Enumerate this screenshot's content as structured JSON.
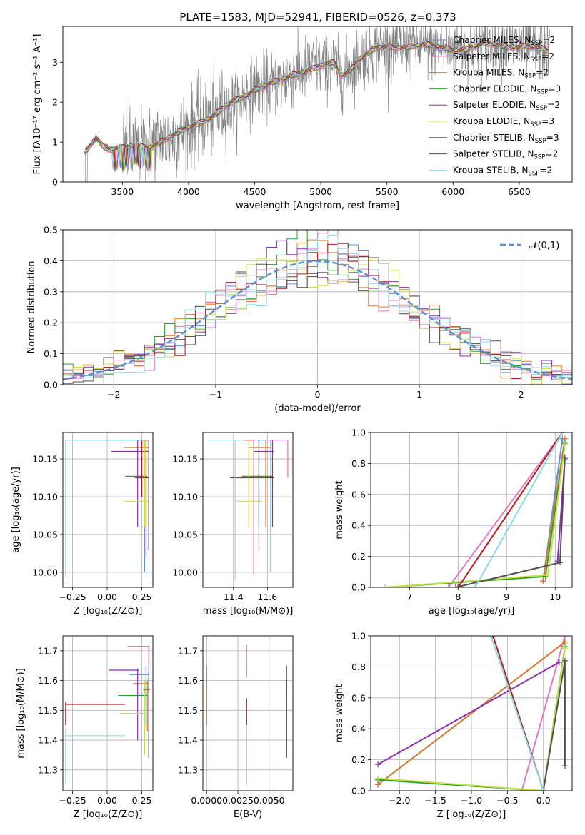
{
  "figure": {
    "title": "PLATE=1583, MJD=52941, FIBERID=0526, z=0.373"
  },
  "series_styles": [
    {
      "name": "Chabrier MILES, N_SSP=2",
      "label_main": "Chabrier MILES, N",
      "label_sub": "SSP",
      "label_tail": "=2",
      "color": "#5b8fd6"
    },
    {
      "name": "Salpeter MILES, N_SSP=2",
      "label_main": "Salpeter MILES, N",
      "label_sub": "SSP",
      "label_tail": "=2",
      "color": "#e377c2"
    },
    {
      "name": "Kroupa MILES, N_SSP=2",
      "label_main": "Kroupa MILES, N",
      "label_sub": "SSP",
      "label_tail": "=2",
      "color": "#e07b2c"
    },
    {
      "name": "Chabrier ELODIE, N_SSP=3",
      "label_main": "Chabrier ELODIE, N",
      "label_sub": "SSP",
      "label_tail": "=3",
      "color": "#2ca02c"
    },
    {
      "name": "Salpeter ELODIE, N_SSP=2",
      "label_main": "Salpeter ELODIE, N",
      "label_sub": "SSP",
      "label_tail": "=2",
      "color": "#8e2fb0"
    },
    {
      "name": "Kroupa ELODIE, N_SSP=3",
      "label_main": "Kroupa ELODIE, N",
      "label_sub": "SSP",
      "label_tail": "=3",
      "color": "#c8e04a"
    },
    {
      "name": "Chabrier STELIB, N_SSP=3",
      "label_main": "Chabrier STELIB, N",
      "label_sub": "SSP",
      "label_tail": "=3",
      "color": "#505050"
    },
    {
      "name": "Salpeter STELIB, N_SSP=2",
      "label_main": "Salpeter STELIB, N",
      "label_sub": "SSP",
      "label_tail": "=2",
      "color": "#b31b1b"
    },
    {
      "name": "Kroupa STELIB, N_SSP=2",
      "label_main": "Kroupa STELIB, N",
      "label_sub": "SSP",
      "label_tail": "=2",
      "color": "#8fd9e6"
    }
  ],
  "chart_data": [
    {
      "panel": "spectrum",
      "type": "line",
      "xlabel": "wavelength [Angstrom, rest frame]",
      "ylabel": "Flux [f_λ 10^-17 erg cm^-2 s^-1 A^-1]",
      "xlim": [
        3050,
        6900
      ],
      "ylim": [
        0,
        3.9
      ],
      "xticks": [
        3500,
        4000,
        4500,
        5000,
        5500,
        6000,
        6500
      ],
      "yticks": [
        0,
        1,
        2,
        3
      ],
      "data_color": "#808080",
      "model_anchor_wavelengths": [
        3220,
        3300,
        3350,
        3400,
        3500,
        3600,
        3700,
        3800,
        3900,
        4000,
        4100,
        4200,
        4300,
        4400,
        4500,
        4600,
        4700,
        4800,
        4900,
        5000,
        5100,
        5150,
        5200,
        5300,
        5400,
        5500,
        5600,
        5700,
        5800,
        5900,
        6000,
        6100,
        6200,
        6300,
        6400,
        6500,
        6600,
        6700
      ],
      "model_anchor_flux": [
        0.72,
        1.15,
        0.95,
        0.85,
        0.82,
        0.88,
        0.9,
        1.05,
        1.15,
        1.35,
        1.55,
        1.7,
        1.9,
        2.1,
        2.35,
        2.45,
        2.5,
        2.7,
        2.85,
        2.9,
        2.95,
        2.65,
        2.75,
        3.15,
        3.3,
        3.35,
        3.4,
        3.45,
        3.4,
        3.35,
        3.35,
        3.35,
        3.4,
        3.45,
        3.45,
        3.4,
        3.35,
        3.3
      ],
      "legend_loc": "upper right"
    },
    {
      "panel": "residual_histogram",
      "type": "line",
      "xlabel": "(data-model)/error",
      "ylabel": "Normed distribution",
      "xlim": [
        -2.5,
        2.5
      ],
      "ylim": [
        0,
        0.5
      ],
      "xticks": [
        -2,
        -1,
        0,
        1,
        2
      ],
      "yticks": [
        0.0,
        0.1,
        0.2,
        0.3,
        0.4,
        0.5
      ],
      "bin_width": 0.1,
      "reference_curve": {
        "name": "N(0,1)",
        "color": "#5b8fd6",
        "style": "dashed"
      },
      "grid": true,
      "legend_loc": "upper right"
    },
    {
      "panel": "age_vs_Z",
      "type": "scatter",
      "xlabel": "Z [log10(Z/Z⊙)]",
      "ylabel": "age  [log10(age/yr)]",
      "xlim": [
        -0.32,
        0.33
      ],
      "ylim": [
        9.98,
        10.185
      ],
      "xticks": [
        -0.25,
        0.0,
        0.25
      ],
      "yticks": [
        10.0,
        10.05,
        10.1,
        10.15
      ],
      "grid": true,
      "points": [
        {
          "series": 0,
          "Z": 0.27,
          "age": 10.175,
          "Zlo": -0.3,
          "Zhi": 0.3,
          "agelo": 10.0,
          "agehi": 10.175
        },
        {
          "series": 1,
          "Z": 0.28,
          "age": 10.175,
          "Zlo": -0.3,
          "Zhi": 0.3,
          "agelo": 10.02,
          "agehi": 10.175
        },
        {
          "series": 2,
          "Z": 0.28,
          "age": 10.165,
          "Zlo": 0.12,
          "Zhi": 0.3,
          "agelo": 10.06,
          "agehi": 10.175
        },
        {
          "series": 3,
          "Z": 0.27,
          "age": 10.127,
          "Zlo": 0.13,
          "Zhi": 0.29,
          "agelo": 10.06,
          "agehi": 10.175
        },
        {
          "series": 4,
          "Z": 0.22,
          "age": 10.16,
          "Zlo": 0.03,
          "Zhi": 0.3,
          "agelo": 10.06,
          "agehi": 10.175
        },
        {
          "series": 5,
          "Z": 0.27,
          "age": 10.094,
          "Zlo": 0.12,
          "Zhi": 0.3,
          "agelo": 10.06,
          "agehi": 10.175
        },
        {
          "series": 6,
          "Z": 0.3,
          "age": 10.125,
          "Zlo": 0.2,
          "Zhi": 0.3,
          "agelo": 10.03,
          "agehi": 10.175
        },
        {
          "series": 7,
          "Z": 0.25,
          "age": 10.175,
          "Zlo": 0.0,
          "Zhi": 0.3,
          "agelo": 10.1,
          "agehi": 10.175
        },
        {
          "series": 8,
          "Z": -0.3,
          "age": 10.175,
          "Zlo": -0.3,
          "Zhi": 0.28,
          "agelo": 9.995,
          "agehi": 10.175
        }
      ]
    },
    {
      "panel": "age_vs_mass",
      "type": "scatter",
      "xlabel": "mass [log10(M/M⊙)]",
      "ylabel": "",
      "xlim": [
        11.22,
        11.75
      ],
      "ylim": [
        9.98,
        10.185
      ],
      "xticks": [
        11.4,
        11.6
      ],
      "yticks": [
        10.0,
        10.05,
        10.1,
        10.15
      ],
      "grid": true,
      "points": [
        {
          "series": 0,
          "mass": 11.62,
          "age": 10.175,
          "mlo": 11.42,
          "mhi": 11.65,
          "agelo": 10.0,
          "agehi": 10.175
        },
        {
          "series": 1,
          "mass": 11.72,
          "age": 10.175,
          "mlo": 11.6,
          "mhi": 11.72,
          "agelo": 10.125,
          "agehi": 10.175
        },
        {
          "series": 2,
          "mass": 11.59,
          "age": 10.165,
          "mlo": 11.49,
          "mhi": 11.62,
          "agelo": 10.06,
          "agehi": 10.175
        },
        {
          "series": 3,
          "mass": 11.55,
          "age": 10.127,
          "mlo": 11.45,
          "mhi": 11.63,
          "agelo": 10.06,
          "agehi": 10.175
        },
        {
          "series": 4,
          "mass": 11.63,
          "age": 10.16,
          "mlo": 11.52,
          "mhi": 11.64,
          "agelo": 10.06,
          "agehi": 10.175
        },
        {
          "series": 5,
          "mass": 11.49,
          "age": 10.094,
          "mlo": 11.42,
          "mhi": 11.57,
          "agelo": 10.06,
          "agehi": 10.175
        },
        {
          "series": 6,
          "mass": 11.55,
          "age": 10.125,
          "mlo": 11.38,
          "mhi": 11.64,
          "agelo": 10.03,
          "agehi": 10.175
        },
        {
          "series": 7,
          "mass": 11.52,
          "age": 10.175,
          "mlo": 11.46,
          "mhi": 11.52,
          "agelo": 9.998,
          "agehi": 10.175
        },
        {
          "series": 8,
          "mass": 11.41,
          "age": 10.175,
          "mlo": 11.25,
          "mhi": 11.44,
          "agelo": 9.99,
          "agehi": 10.175
        }
      ]
    },
    {
      "panel": "massweight_vs_age",
      "type": "line",
      "xlabel": "age  [log10(age/yr)]",
      "ylabel": "mass weight",
      "xlim": [
        6.2,
        10.35
      ],
      "ylim": [
        0,
        1.0
      ],
      "xticks": [
        7,
        8,
        9,
        10
      ],
      "yticks": [
        0.0,
        0.2,
        0.4,
        0.6,
        0.8,
        1.0
      ],
      "grid": true,
      "lines": [
        {
          "series": 0,
          "x": [
            9.75,
            10.15
          ],
          "y": [
            0.04,
            0.96
          ]
        },
        {
          "series": 1,
          "x": [
            7.8,
            10.15
          ],
          "y": [
            0.0,
            1.0
          ]
        },
        {
          "series": 2,
          "x": [
            9.75,
            10.2
          ],
          "y": [
            0.04,
            0.96
          ]
        },
        {
          "series": 3,
          "x": [
            6.5,
            9.8,
            10.2
          ],
          "y": [
            0.0,
            0.07,
            0.93
          ]
        },
        {
          "series": 4,
          "x": [
            10.05,
            10.2
          ],
          "y": [
            0.17,
            0.83
          ]
        },
        {
          "series": 5,
          "x": [
            6.5,
            9.85,
            10.2
          ],
          "y": [
            0.0,
            0.08,
            0.92
          ]
        },
        {
          "series": 6,
          "x": [
            7.95,
            10.1,
            10.2
          ],
          "y": [
            0.0,
            0.16,
            0.84
          ]
        },
        {
          "series": 7,
          "x": [
            8.0,
            10.15
          ],
          "y": [
            0.0,
            1.0
          ]
        },
        {
          "series": 8,
          "x": [
            8.35,
            10.15
          ],
          "y": [
            0.0,
            1.0
          ]
        }
      ]
    },
    {
      "panel": "mass_vs_Z",
      "type": "scatter",
      "xlabel": "Z [log10(Z/Z⊙)]",
      "ylabel": "mass [log10(M/M⊙)]",
      "xlim": [
        -0.32,
        0.33
      ],
      "ylim": [
        11.23,
        11.75
      ],
      "xticks": [
        -0.25,
        0.0,
        0.25
      ],
      "yticks": [
        11.3,
        11.4,
        11.5,
        11.6,
        11.7
      ],
      "grid": true,
      "points": [
        {
          "series": 0,
          "Z": 0.28,
          "mass": 11.62,
          "Zlo": 0.16,
          "Zhi": 0.3,
          "mlo": 11.45,
          "mhi": 11.65
        },
        {
          "series": 1,
          "Z": 0.3,
          "mass": 11.715,
          "Zlo": 0.15,
          "Zhi": 0.3,
          "mlo": 11.63,
          "mhi": 11.72
        },
        {
          "series": 2,
          "Z": 0.29,
          "mass": 11.59,
          "Zlo": 0.19,
          "Zhi": 0.3,
          "mlo": 11.43,
          "mhi": 11.6
        },
        {
          "series": 3,
          "Z": 0.27,
          "mass": 11.55,
          "Zlo": 0.08,
          "Zhi": 0.29,
          "mlo": 11.35,
          "mhi": 11.6
        },
        {
          "series": 4,
          "Z": 0.22,
          "mass": 11.635,
          "Zlo": 0.01,
          "Zhi": 0.23,
          "mlo": 11.4,
          "mhi": 11.64
        },
        {
          "series": 5,
          "Z": 0.27,
          "mass": 11.49,
          "Zlo": 0.09,
          "Zhi": 0.27,
          "mlo": 11.35,
          "mhi": 11.6
        },
        {
          "series": 6,
          "Z": 0.3,
          "mass": 11.57,
          "Zlo": 0.26,
          "Zhi": 0.31,
          "mlo": 11.34,
          "mhi": 11.63
        },
        {
          "series": 7,
          "Z": -0.3,
          "mass": 11.52,
          "Zlo": -0.3,
          "Zhi": 0.13,
          "mlo": 11.45,
          "mhi": 11.53
        },
        {
          "series": 8,
          "Z": -0.3,
          "mass": 11.415,
          "Zlo": -0.3,
          "Zhi": 0.13,
          "mlo": 11.25,
          "mhi": 11.44
        }
      ]
    },
    {
      "panel": "mass_vs_EBV",
      "type": "scatter",
      "xlabel": "E(B-V)",
      "ylabel": "",
      "xlim": [
        -0.0003,
        0.0069
      ],
      "ylim": [
        11.23,
        11.75
      ],
      "xticks": [
        0.0,
        0.0025,
        0.005
      ],
      "xtick_labels": [
        "0.0000",
        "0.0025",
        "0.0050"
      ],
      "yticks": [
        11.3,
        11.4,
        11.5,
        11.6,
        11.7
      ],
      "grid": true,
      "points": [
        {
          "series": 0,
          "ebv": 0.0,
          "mass": 11.62,
          "mlo": 11.45,
          "mhi": 11.65
        },
        {
          "series": 1,
          "ebv": 0.0032,
          "mass": 11.715,
          "mlo": 11.61,
          "mhi": 11.72
        },
        {
          "series": 2,
          "ebv": 0.0,
          "mass": 11.59,
          "mlo": 11.45,
          "mhi": 11.6
        },
        {
          "series": 3,
          "ebv": 0.0064,
          "mass": 11.55,
          "mlo": 11.35,
          "mhi": 11.6
        },
        {
          "series": 4,
          "ebv": 0.0064,
          "mass": 11.635,
          "mlo": 11.44,
          "mhi": 11.65
        },
        {
          "series": 5,
          "ebv": 0.0064,
          "mass": 11.49,
          "mlo": 11.35,
          "mhi": 11.56
        },
        {
          "series": 6,
          "ebv": 0.0064,
          "mass": 11.57,
          "mlo": 11.34,
          "mhi": 11.6
        },
        {
          "series": 7,
          "ebv": 0.0032,
          "mass": 11.52,
          "mlo": 11.45,
          "mhi": 11.54
        },
        {
          "series": 8,
          "ebv": 0.0032,
          "mass": 11.415,
          "mlo": 11.25,
          "mhi": 11.45
        }
      ]
    },
    {
      "panel": "massweight_vs_Z",
      "type": "line",
      "xlabel": "Z [log10(Z/Z⊙)]",
      "ylabel": "mass weight",
      "xlim": [
        -2.4,
        0.4
      ],
      "ylim": [
        0,
        1.0
      ],
      "xticks": [
        -2.0,
        -1.5,
        -1.0,
        -0.5,
        0.0
      ],
      "yticks": [
        0.0,
        0.2,
        0.4,
        0.6,
        0.8,
        1.0
      ],
      "grid": true,
      "lines": [
        {
          "series": 0,
          "x": [
            -2.3,
            0.3
          ],
          "y": [
            0.04,
            0.96
          ]
        },
        {
          "series": 1,
          "x": [
            -0.3,
            0.3
          ],
          "y": [
            0.0,
            1.0
          ]
        },
        {
          "series": 2,
          "x": [
            -2.3,
            0.3
          ],
          "y": [
            0.04,
            0.96
          ]
        },
        {
          "series": 3,
          "x": [
            -2.3,
            0.0,
            0.3
          ],
          "y": [
            0.07,
            0.0,
            0.93
          ]
        },
        {
          "series": 4,
          "x": [
            -2.3,
            0.22
          ],
          "y": [
            0.17,
            0.83
          ]
        },
        {
          "series": 5,
          "x": [
            -2.3,
            0.0,
            0.3
          ],
          "y": [
            0.08,
            0.0,
            0.92
          ]
        },
        {
          "series": 6,
          "x": [
            0.0,
            0.3,
            0.3
          ],
          "y": [
            0.0,
            0.84,
            0.16
          ]
        },
        {
          "series": 7,
          "x": [
            0.0,
            -0.7
          ],
          "y": [
            0.0,
            1.0
          ]
        },
        {
          "series": 8,
          "x": [
            0.0,
            -0.73
          ],
          "y": [
            0.0,
            1.0
          ]
        }
      ]
    }
  ]
}
